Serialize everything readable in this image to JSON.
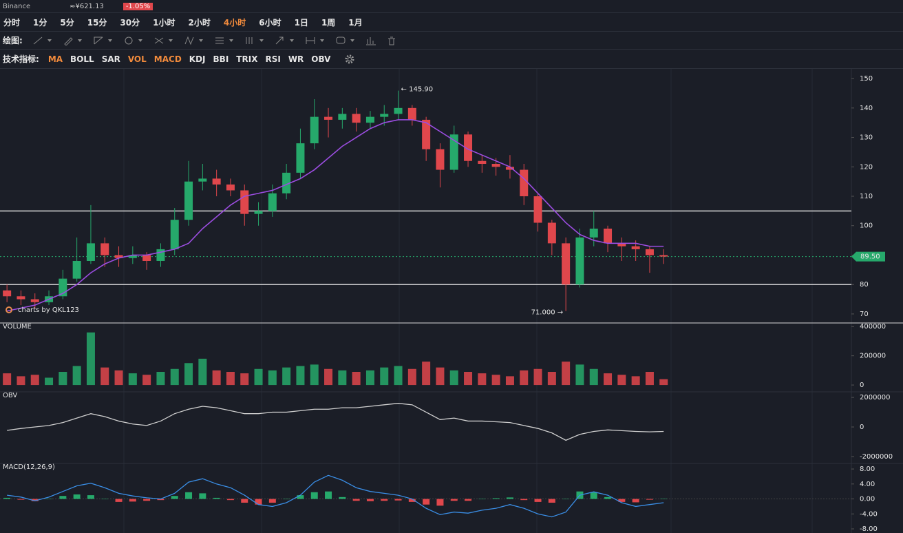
{
  "header": {
    "exchange": "Binance",
    "price": "≈¥621.13",
    "change": "-1.05%"
  },
  "timeframes": {
    "tabs": [
      "分时",
      "1分",
      "5分",
      "15分",
      "30分",
      "1小时",
      "2小时",
      "4小时",
      "6小时",
      "1日",
      "1周",
      "1月"
    ],
    "active_index": 7
  },
  "drawing": {
    "label": "绘图:"
  },
  "indicators": {
    "label": "技术指标:",
    "items": [
      {
        "text": "MA",
        "active": true
      },
      {
        "text": "BOLL",
        "active": false
      },
      {
        "text": "SAR",
        "active": false
      },
      {
        "text": "VOL",
        "active": true
      },
      {
        "text": "MACD",
        "active": true
      },
      {
        "text": "KDJ",
        "active": false
      },
      {
        "text": "BBI",
        "active": false
      },
      {
        "text": "TRIX",
        "active": false
      },
      {
        "text": "RSI",
        "active": false
      },
      {
        "text": "WR",
        "active": false
      },
      {
        "text": "OBV",
        "active": false
      }
    ]
  },
  "chart_data": [
    {
      "type": "candlestick",
      "watermark": "charts by QKL123",
      "up_color": "#26a96b",
      "down_color": "#e0474c",
      "open": [
        78,
        76,
        75,
        74,
        76,
        82,
        88,
        94,
        90,
        89,
        90,
        88,
        92,
        102,
        115,
        116,
        114,
        112,
        104,
        105,
        111,
        118,
        128,
        137,
        136,
        138,
        135,
        137,
        138,
        140,
        136,
        126,
        119,
        131,
        122,
        121,
        120,
        119,
        110,
        101,
        94,
        80,
        96,
        99,
        94,
        93,
        92,
        90
      ],
      "high": [
        80,
        78,
        77,
        78,
        85,
        96,
        107,
        96,
        93,
        93,
        91,
        94,
        106,
        122,
        121,
        119,
        116,
        114,
        108,
        114,
        121,
        133,
        143,
        140,
        140,
        140,
        139,
        141,
        145.9,
        141,
        137,
        128,
        134,
        132,
        124,
        123,
        124,
        121,
        111,
        102,
        96,
        99,
        105,
        100,
        96,
        95,
        93,
        92
      ],
      "low": [
        74,
        73,
        72,
        73,
        75,
        81,
        87,
        86,
        86,
        87,
        85,
        86,
        90,
        100,
        112,
        110,
        110,
        100,
        100,
        103,
        109,
        116,
        126,
        130,
        133,
        132,
        133,
        134,
        136,
        134,
        122,
        113,
        118,
        120,
        118,
        117,
        116,
        107,
        98,
        90,
        71,
        79,
        93,
        91,
        88,
        88,
        84,
        87
      ],
      "close": [
        76,
        75,
        74,
        76,
        82,
        88,
        94,
        90,
        89,
        90,
        88,
        92,
        102,
        115,
        116,
        114,
        112,
        104,
        105,
        111,
        118,
        128,
        137,
        136,
        138,
        135,
        137,
        138,
        140,
        136,
        126,
        119,
        131,
        122,
        121,
        120,
        119,
        110,
        101,
        94,
        80,
        96,
        99,
        94,
        93,
        92,
        90,
        89.5
      ],
      "series": [
        {
          "color": "#9b4de0",
          "values": [
            71,
            72,
            73,
            75,
            77,
            80,
            84,
            87,
            89,
            90,
            90,
            91,
            92,
            94,
            99,
            103,
            107,
            110,
            111,
            112,
            114,
            116,
            119,
            123,
            127,
            130,
            133,
            135,
            136,
            136,
            135,
            132,
            129,
            126,
            124,
            122,
            120,
            116,
            111,
            106,
            101,
            97,
            95,
            94,
            94,
            94,
            93,
            93
          ]
        }
      ],
      "ylim": [
        66.7,
        153.3
      ],
      "yticks": [
        70,
        80,
        90,
        100,
        110,
        120,
        130,
        140,
        150
      ],
      "hlines": [
        105,
        80
      ],
      "last_price": {
        "value": 89.5,
        "label": "89.50"
      },
      "annotations": [
        {
          "text": "← 145.90",
          "value": 145.9
        },
        {
          "text": "71.000 →",
          "value": 71
        }
      ]
    },
    {
      "type": "bar",
      "title": "VOLUME",
      "values": [
        80000,
        60000,
        70000,
        50000,
        90000,
        130000,
        360000,
        120000,
        100000,
        80000,
        70000,
        90000,
        110000,
        150000,
        180000,
        100000,
        90000,
        80000,
        110000,
        100000,
        120000,
        130000,
        140000,
        110000,
        100000,
        90000,
        100000,
        120000,
        130000,
        110000,
        160000,
        120000,
        100000,
        90000,
        80000,
        70000,
        60000,
        100000,
        110000,
        90000,
        160000,
        140000,
        110000,
        80000,
        70000,
        60000,
        90000,
        40000
      ],
      "ylim": [
        -42000,
        420000
      ],
      "yticks": [
        0,
        200000,
        400000
      ]
    },
    {
      "type": "line",
      "title": "OBV",
      "color": "#d0d0d0",
      "values": [
        -230000,
        -100000,
        0,
        100000,
        300000,
        600000,
        900000,
        700000,
        400000,
        200000,
        100000,
        400000,
        900000,
        1200000,
        1400000,
        1300000,
        1100000,
        900000,
        900000,
        1000000,
        1000000,
        1100000,
        1200000,
        1200000,
        1300000,
        1300000,
        1400000,
        1500000,
        1600000,
        1500000,
        1000000,
        500000,
        600000,
        400000,
        400000,
        350000,
        300000,
        100000,
        -100000,
        -400000,
        -900000,
        -500000,
        -300000,
        -200000,
        -250000,
        -300000,
        -330000,
        -300000
      ],
      "ylim": [
        -2420000,
        2330000
      ],
      "yticks": [
        -2000000,
        0,
        2000000
      ]
    },
    {
      "type": "macd",
      "title": "MACD(12,26,9)",
      "line_color": "#3a8ee6",
      "up_color": "#26a96b",
      "down_color": "#e0474c",
      "line": [
        1,
        0.5,
        -0.5,
        0.5,
        2,
        3.5,
        4.2,
        3,
        1.5,
        0.8,
        0.3,
        0,
        1.5,
        4.5,
        5.4,
        4,
        3,
        1,
        -1.5,
        -2,
        -1,
        1,
        4.5,
        6.3,
        5,
        3,
        2,
        1.5,
        1,
        0,
        -2.5,
        -4.2,
        -3.5,
        -3.8,
        -3,
        -2.5,
        -1.5,
        -2.5,
        -4,
        -4.8,
        -3.5,
        1,
        1.9,
        1,
        -1,
        -2,
        -1.5,
        -1
      ],
      "histogram": [
        0.3,
        -0.2,
        -0.6,
        0,
        0.8,
        1.2,
        1,
        0,
        -0.8,
        -0.7,
        -0.5,
        -0.3,
        0.8,
        1.8,
        1.5,
        0.3,
        -0.3,
        -1,
        -1.5,
        -1,
        0,
        1,
        1.8,
        2,
        0.5,
        -0.5,
        -0.6,
        -0.5,
        -0.4,
        -0.8,
        -1.5,
        -1.8,
        -0.5,
        -0.5,
        0,
        0.2,
        0.4,
        -0.3,
        -0.8,
        -1,
        0,
        2,
        1.8,
        0.5,
        -0.8,
        -0.9,
        -0.2,
        0.1
      ],
      "ylim": [
        -9.1,
        9.3
      ],
      "yticks": [
        {
          "value": 8,
          "label": "8.00"
        },
        {
          "value": 4,
          "label": "4.00"
        },
        {
          "value": 0,
          "label": "0.00"
        },
        {
          "value": -4,
          "label": "-4.00"
        },
        {
          "value": -8,
          "label": "-8.00"
        }
      ]
    }
  ]
}
